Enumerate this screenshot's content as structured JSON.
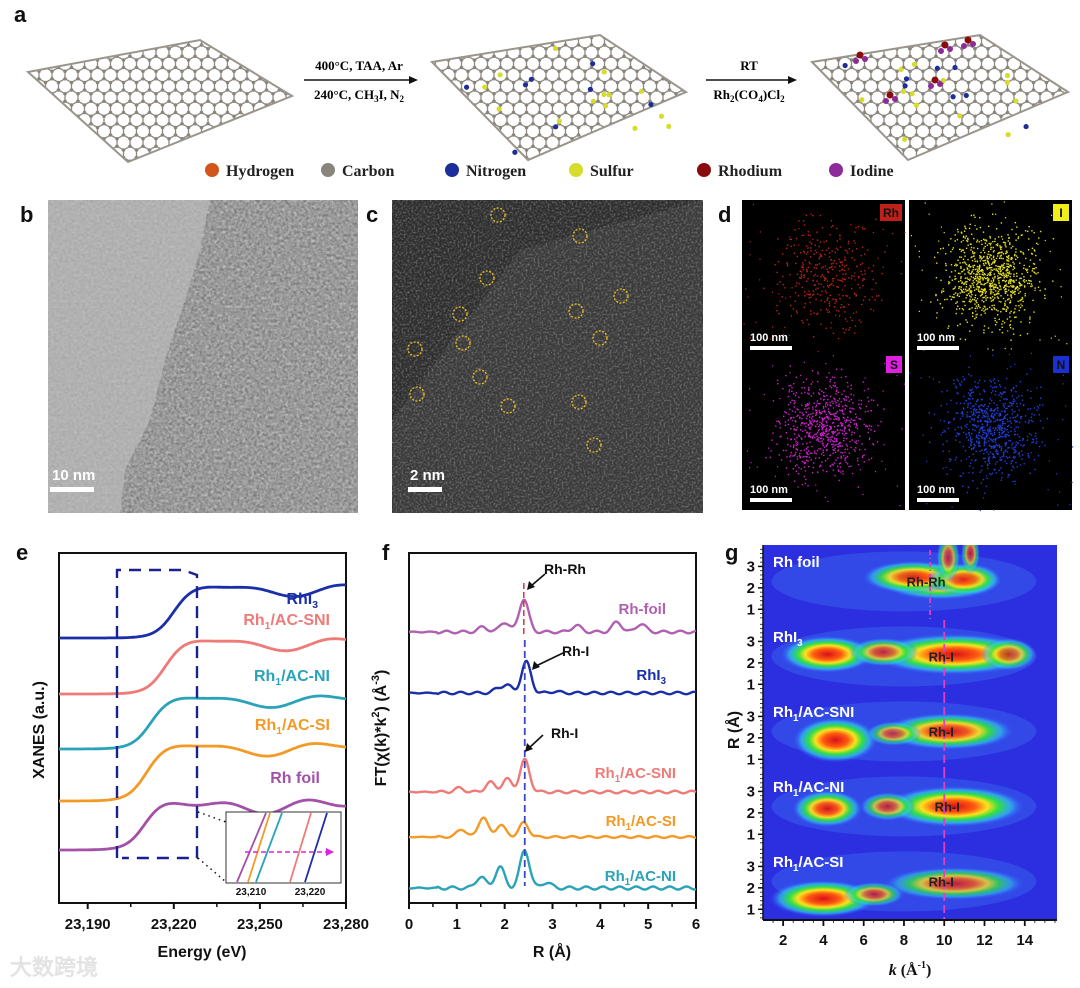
{
  "panel_labels": {
    "a": "a",
    "b": "b",
    "c": "c",
    "d": "d",
    "e": "e",
    "f": "f",
    "g": "g"
  },
  "panel_a": {
    "step1_top": "400°C, TAA, Ar",
    "step1_bottom_main": "240°C, CH",
    "step1_bottom_sub": "3",
    "step1_bottom_rest": "I, N",
    "step1_bottom_sub2": "2",
    "step2_top": "RT",
    "step2_bottom": [
      "Rh",
      "2",
      "(CO",
      "4",
      ")Cl",
      "2"
    ],
    "legend": [
      {
        "label": "Hydrogen",
        "color": "#d2561c"
      },
      {
        "label": "Carbon",
        "color": "#8a857c"
      },
      {
        "label": "Nitrogen",
        "color": "#1d2e9a"
      },
      {
        "label": "Sulfur",
        "color": "#d6dc2a"
      },
      {
        "label": "Rhodium",
        "color": "#8a0b0b"
      },
      {
        "label": "Iodine",
        "color": "#8e2a9a"
      }
    ]
  },
  "panel_b": {
    "scale_bar": "10 nm"
  },
  "panel_c": {
    "scale_bar": "2 nm"
  },
  "panel_d": {
    "tiles": [
      {
        "element": "Rh",
        "color": "#c0201a",
        "badge": "#c0201a",
        "scale_bar": "100 nm"
      },
      {
        "element": "I",
        "color": "#e6e020",
        "badge": "#f2ee1a",
        "scale_bar": "100 nm"
      },
      {
        "element": "S",
        "color": "#d020d0",
        "badge": "#e020e0",
        "scale_bar": "100 nm"
      },
      {
        "element": "N",
        "color": "#2040e0",
        "badge": "#1a30d0",
        "scale_bar": "100 nm"
      }
    ]
  },
  "chart_data": [
    {
      "id": "e",
      "type": "line",
      "xlabel": "Energy (eV)",
      "ylabel": "XANES (a.u.)",
      "xlim": [
        23180,
        23280
      ],
      "xticks": [
        "23,190",
        "23,220",
        "23,250",
        "23,280"
      ],
      "xtick_values": [
        23190,
        23220,
        23250,
        23280
      ],
      "series": [
        {
          "name": [
            "RhI",
            "3",
            ""
          ],
          "color": "#1a2ea8",
          "edge_energy_eV": 23219
        },
        {
          "name": [
            "Rh",
            "1",
            "/AC-SNI"
          ],
          "color": "#ee7b78",
          "edge_energy_eV": 23216
        },
        {
          "name": [
            "Rh",
            "1",
            "/AC-NI"
          ],
          "color": "#2aa3b8",
          "edge_energy_eV": 23211
        },
        {
          "name": [
            "Rh",
            "1",
            "/AC-SI"
          ],
          "color": "#f39a26",
          "edge_energy_eV": 23209.5
        },
        {
          "name": [
            "Rh foil",
            "",
            ""
          ],
          "color": "#a350a8",
          "edge_energy_eV": 23208.5
        }
      ],
      "inset": {
        "xticks": [
          "23,210",
          "23,220"
        ],
        "arrow_color": "#e020e0"
      }
    },
    {
      "id": "f",
      "type": "line",
      "xlabel": "R (Å)",
      "ylabel": "FT(χ(k)*k²) (Å⁻³)",
      "ylabel_parts": [
        "FT(χ(k)*k",
        "2",
        ") (Å",
        "-3",
        ")"
      ],
      "xlim": [
        0,
        6
      ],
      "xticks": [
        "0",
        "1",
        "2",
        "3",
        "4",
        "5",
        "6"
      ],
      "series": [
        {
          "name": [
            "Rh-foil",
            "",
            ""
          ],
          "color": "#b060b0",
          "peaks": [
            [
              2.4,
              1.0
            ],
            [
              2.0,
              0.3
            ],
            [
              1.55,
              0.15
            ],
            [
              3.5,
              0.2
            ],
            [
              4.35,
              0.3
            ],
            [
              4.85,
              0.25
            ]
          ]
        },
        {
          "name": [
            "RhI",
            "3",
            ""
          ],
          "color": "#1a2ea8",
          "peaks": [
            [
              2.45,
              1.0
            ],
            [
              2.05,
              0.25
            ],
            [
              1.85,
              0.12
            ],
            [
              3.05,
              0.05
            ]
          ]
        },
        {
          "name": [
            "Rh",
            "1",
            "/AC-SNI"
          ],
          "color": "#ee7b78",
          "peaks": [
            [
              2.42,
              1.0
            ],
            [
              2.05,
              0.4
            ],
            [
              1.7,
              0.3
            ],
            [
              1.05,
              0.12
            ]
          ]
        },
        {
          "name": [
            "Rh",
            "1",
            "/AC-SI"
          ],
          "color": "#f39a26",
          "peaks": [
            [
              1.55,
              0.9
            ],
            [
              1.92,
              0.55
            ],
            [
              2.4,
              0.65
            ],
            [
              1.1,
              0.35
            ]
          ]
        },
        {
          "name": [
            "Rh",
            "1",
            "/AC-NI"
          ],
          "color": "#2aa3b8",
          "peaks": [
            [
              2.42,
              1.0
            ],
            [
              1.9,
              0.55
            ],
            [
              1.5,
              0.3
            ],
            [
              2.87,
              0.15
            ]
          ]
        }
      ],
      "annotations": [
        "Rh-Rh",
        "Rh-I",
        "Rh-I"
      ],
      "reference_lines": [
        {
          "R": 2.4,
          "color": "#e03030"
        },
        {
          "R": 2.42,
          "color": "#3a46c8"
        }
      ]
    },
    {
      "id": "g",
      "type": "heatmap",
      "xlabel_italic": "k",
      "xlabel_rest": " (Å",
      "xlabel_sup": "-1",
      "xlabel_end": ")",
      "ylabel": "R (Å)",
      "xlim": [
        1,
        15.6
      ],
      "ylim_per_strip": [
        0.5,
        4.0
      ],
      "xticks": [
        "2",
        "4",
        "6",
        "8",
        "10",
        "12",
        "14"
      ],
      "yticks": [
        "1",
        "2",
        "3"
      ],
      "strips": [
        {
          "name": [
            "Rh foil",
            "",
            ""
          ],
          "peak_label": "Rh-Rh",
          "ref_k": 9.3,
          "blobs": [
            [
              9.8,
              2.3,
              2.6,
              0.45,
              1.0
            ],
            [
              8.5,
              2.5,
              2.2,
              0.4,
              0.8
            ],
            [
              11,
              2.4,
              1.6,
              0.4,
              0.7
            ],
            [
              10.2,
              3.4,
              0.5,
              0.6,
              0.35
            ],
            [
              11.3,
              3.6,
              0.4,
              0.5,
              0.35
            ]
          ]
        },
        {
          "name": [
            "RhI",
            "3",
            ""
          ],
          "peak_label": "Rh-I",
          "ref_k": 10,
          "blobs": [
            [
              4.2,
              2.4,
              2.0,
              0.45,
              1.0
            ],
            [
              10.5,
              2.4,
              3.5,
              0.5,
              1.0
            ],
            [
              7,
              2.5,
              1.5,
              0.35,
              0.55
            ],
            [
              13.2,
              2.4,
              1.2,
              0.4,
              0.5
            ]
          ]
        },
        {
          "name": [
            "Rh",
            "1",
            "/AC-SNI"
          ],
          "peak_label": "Rh-I",
          "ref_k": 10,
          "blobs": [
            [
              4.6,
              1.9,
              1.8,
              0.55,
              1.0
            ],
            [
              10.2,
              2.3,
              2.8,
              0.45,
              0.85
            ],
            [
              7.5,
              2.2,
              1.2,
              0.3,
              0.4
            ]
          ]
        },
        {
          "name": [
            "Rh",
            "1",
            "/AC-NI"
          ],
          "peak_label": "Rh-I",
          "ref_k": 10,
          "blobs": [
            [
              4.2,
              2.2,
              1.5,
              0.45,
              0.9
            ],
            [
              10.5,
              2.3,
              3.0,
              0.5,
              1.0
            ],
            [
              7.2,
              2.3,
              1.2,
              0.35,
              0.45
            ]
          ]
        },
        {
          "name": [
            "Rh",
            "1",
            "/AC-SI"
          ],
          "peak_label": "Rh-I",
          "ref_k": 10,
          "blobs": [
            [
              4.0,
              1.5,
              2.3,
              0.45,
              1.0
            ],
            [
              10.5,
              2.2,
              3.0,
              0.4,
              0.55
            ],
            [
              6.5,
              1.7,
              1.3,
              0.3,
              0.45
            ]
          ]
        }
      ]
    }
  ],
  "watermark": "大数跨境"
}
